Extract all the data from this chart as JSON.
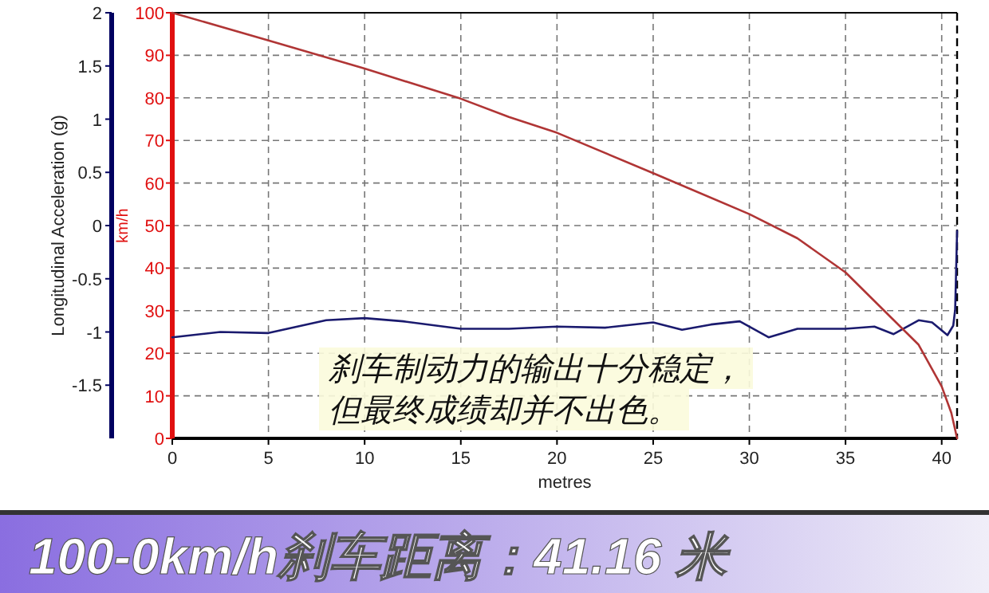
{
  "chart_data": {
    "type": "line",
    "title": "100-0km/h刹车距离：41.16 米",
    "xlabel": "metres",
    "ylabel": "Longitudinal Acceleration (g)",
    "y2label": "km/h",
    "annotations": [
      "刹车制动力的输出十分稳定，",
      "但最终成绩却并不出色。"
    ],
    "xlim": [
      0,
      40.8
    ],
    "xticks": [
      0,
      5,
      10,
      15,
      20,
      25,
      30,
      35,
      40
    ],
    "ylim": [
      -2,
      2
    ],
    "yticks": [
      -1.5,
      -1,
      -0.5,
      0,
      0.5,
      1,
      1.5,
      2
    ],
    "y2lim": [
      0,
      100
    ],
    "y2ticks": [
      0,
      10,
      20,
      30,
      40,
      50,
      60,
      70,
      80,
      90,
      100
    ],
    "grid": true,
    "line_style": "solid",
    "ref_lines": [
      {
        "axis": "x",
        "value": 40.8,
        "color": "#000000",
        "line_style": "dashed"
      }
    ],
    "series": [
      {
        "color": "#1a1a6e",
        "x": [
          0,
          2.5,
          5,
          8,
          10,
          12,
          15,
          17.5,
          20,
          22.5,
          25,
          26.5,
          28,
          29.5,
          31,
          32.5,
          35,
          36.5,
          37.5,
          38.8,
          39.5,
          40.3,
          40.6,
          40.7,
          40.8
        ],
        "values": [
          -1.05,
          -1,
          -1.01,
          -0.89,
          -0.87,
          -0.9,
          -0.97,
          -0.97,
          -0.95,
          -0.96,
          -0.91,
          -0.98,
          -0.93,
          -0.9,
          -1.05,
          -0.97,
          -0.97,
          -0.95,
          -1.02,
          -0.89,
          -0.91,
          -1.03,
          -0.94,
          -0.79,
          -0.05
        ]
      },
      {
        "color": "#b03535",
        "axis": "y2",
        "x": [
          0,
          5,
          10,
          15,
          17.5,
          20,
          25,
          30,
          32.5,
          35,
          37.5,
          38.8,
          40,
          40.5,
          40.8
        ],
        "values": [
          100,
          93.5,
          86.9,
          79.8,
          75.5,
          71.8,
          62.3,
          52.7,
          47,
          39,
          27.8,
          22,
          12.2,
          6,
          0
        ]
      }
    ]
  }
}
